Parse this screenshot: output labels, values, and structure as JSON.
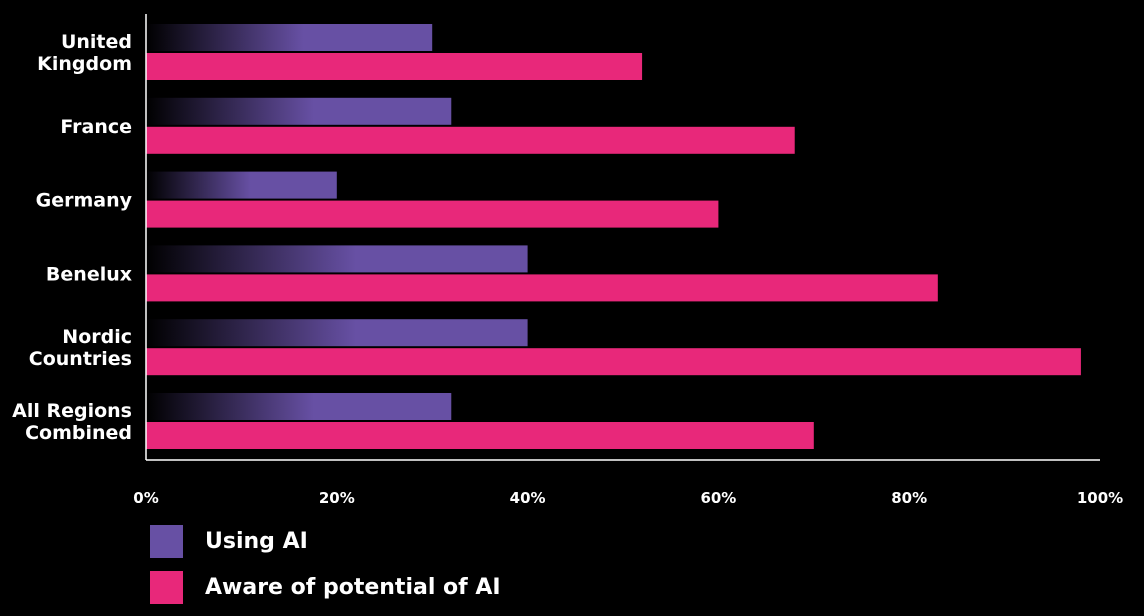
{
  "chart_data": {
    "type": "bar",
    "orientation": "horizontal",
    "categories": [
      [
        "United",
        "Kingdom"
      ],
      [
        "France"
      ],
      [
        "Germany"
      ],
      [
        "Benelux"
      ],
      [
        "Nordic",
        "Countries"
      ],
      [
        "All Regions",
        "Combined"
      ]
    ],
    "series": [
      {
        "name": "Using AI",
        "color": "#6750a4",
        "gradient_start": "#000000",
        "values": [
          30,
          32,
          20,
          40,
          40,
          32
        ]
      },
      {
        "name": "Aware of potential of AI",
        "color": "#e8287a",
        "values": [
          52,
          68,
          60,
          83,
          98,
          70
        ]
      }
    ],
    "xlim": [
      0,
      100
    ],
    "x_ticks": [
      0,
      20,
      40,
      60,
      80,
      100
    ],
    "x_tick_labels": [
      "0%",
      "20%",
      "40%",
      "60%",
      "80%",
      "100%"
    ],
    "grid": false,
    "legend_position": "bottom-left",
    "title": "",
    "xlabel": "",
    "ylabel": ""
  }
}
